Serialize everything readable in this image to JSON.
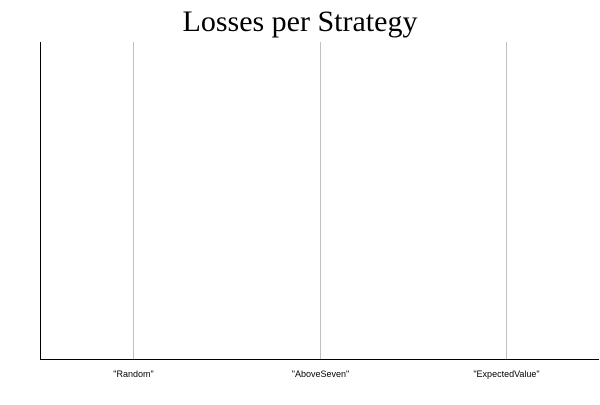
{
  "chart_data": {
    "type": "bar",
    "title": "Losses per Strategy",
    "xlabel": "",
    "ylabel": "",
    "categories": [
      "\"Random\"",
      "\"AboveSeven\"",
      "\"ExpectedValue\""
    ],
    "series": [
      {
        "values": [
          null,
          null,
          null
        ]
      }
    ],
    "grid": {
      "x": true,
      "y": false
    },
    "legend": "none",
    "colors": {
      "axis": "#000000",
      "grid": "#c0c0c0",
      "background": "#ffffff"
    }
  }
}
